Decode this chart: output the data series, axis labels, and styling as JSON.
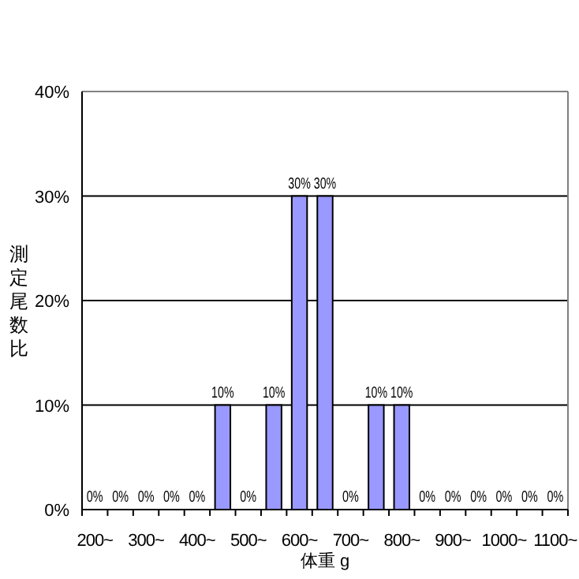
{
  "chart_data": {
    "type": "bar",
    "xlabel": "体重 g",
    "ylabel": "測定尾数比",
    "categories": [
      "200~",
      null,
      "300~",
      null,
      "400~",
      null,
      "500~",
      null,
      "600~",
      null,
      "700~",
      null,
      "800~",
      null,
      "900~",
      null,
      "1000~",
      null,
      "1100~"
    ],
    "values": [
      0,
      0,
      0,
      0,
      0,
      10,
      0,
      10,
      30,
      30,
      0,
      10,
      10,
      0,
      0,
      0,
      0,
      0,
      0
    ],
    "value_labels": [
      "0%",
      "0%",
      "0%",
      "0%",
      "0%",
      "10%",
      "0%",
      "10%",
      "30%",
      "30%",
      "0%",
      "10%",
      "10%",
      "0%",
      "0%",
      "0%",
      "0%",
      "0%",
      "0%"
    ],
    "color": "#9999ff",
    "ylim": [
      0,
      40
    ],
    "yticks": [
      {
        "value": 0,
        "label": "0%"
      },
      {
        "value": 10,
        "label": "10%"
      },
      {
        "value": 20,
        "label": "20%"
      },
      {
        "value": 30,
        "label": "30%"
      },
      {
        "value": 40,
        "label": "40%"
      }
    ],
    "grid": "y"
  }
}
